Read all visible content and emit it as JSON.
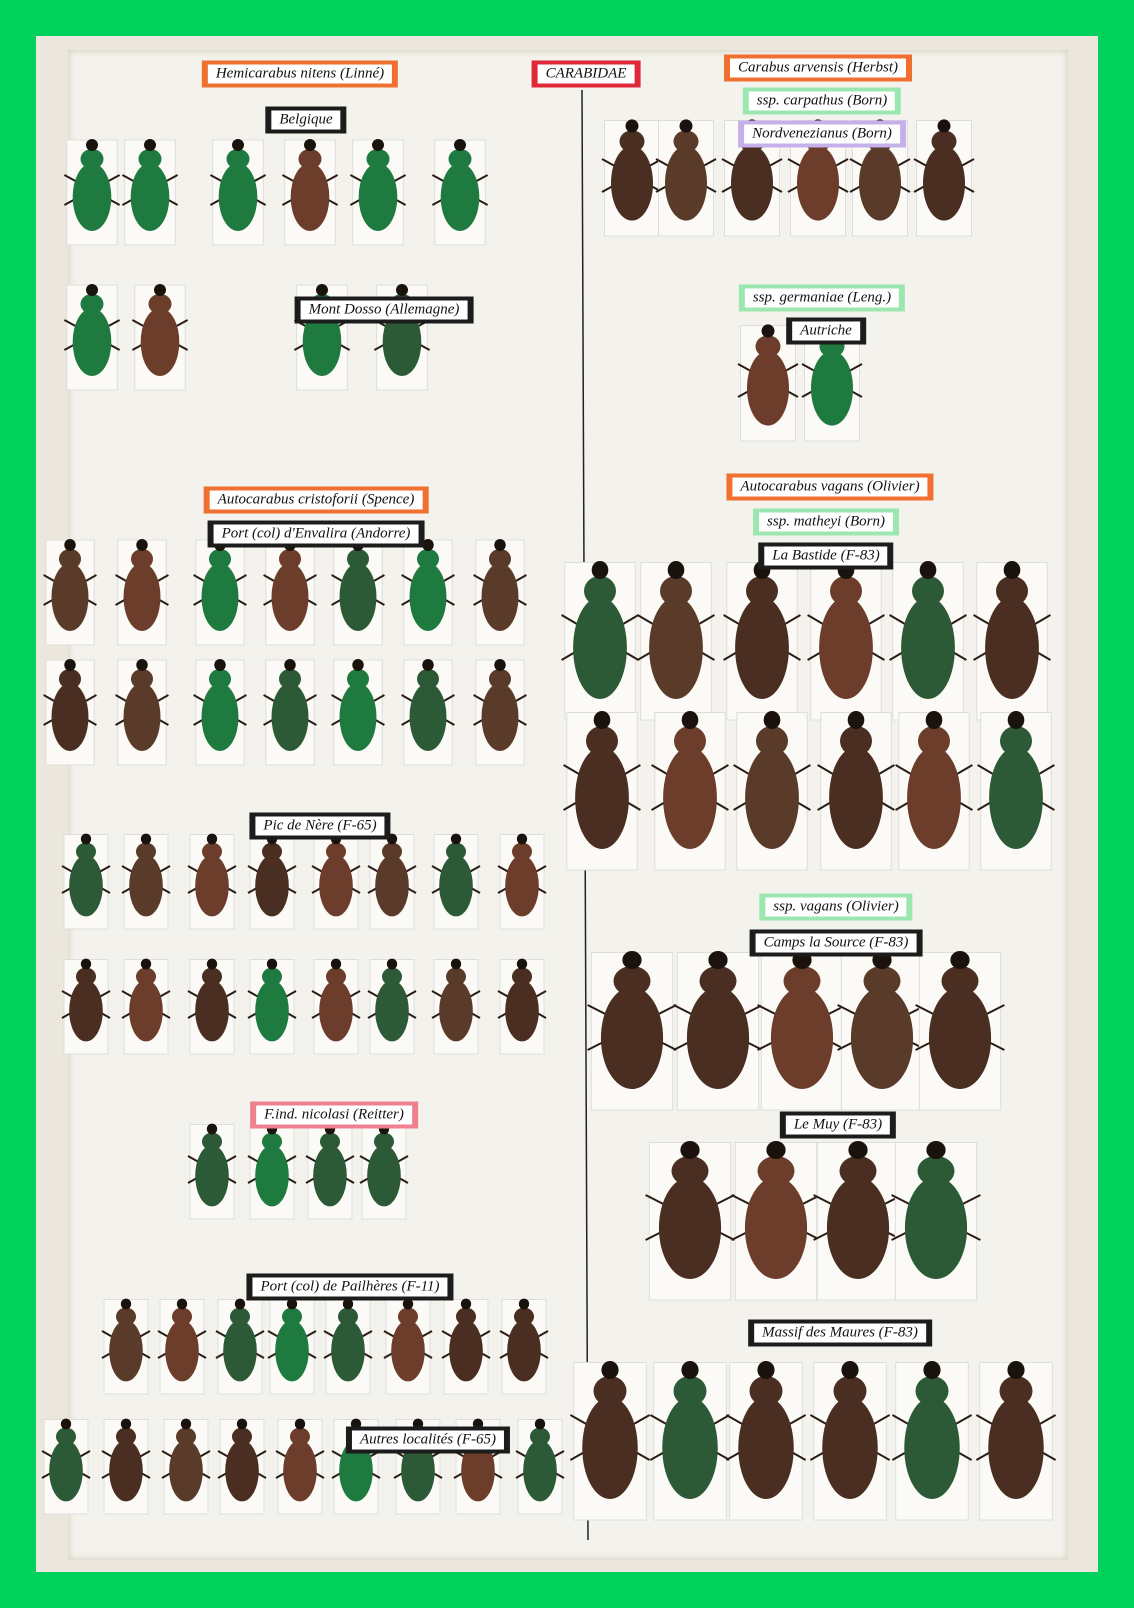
{
  "labels": [
    {
      "text": "Hemicarabus nitens (Linné)"
    },
    {
      "text": "CARABIDAE"
    },
    {
      "text": "Carabus arvensis (Herbst)"
    },
    {
      "text": "ssp. carpathus (Born)"
    },
    {
      "text": "Nordvenezianus (Born)"
    },
    {
      "text": "Belgique"
    },
    {
      "text": "Mont Dosso (Allemagne)"
    },
    {
      "text": "ssp. germaniae (Leng.)"
    },
    {
      "text": "Autriche"
    },
    {
      "text": "Autocarabus cristoforii (Spence)"
    },
    {
      "text": "Port (col) d'Envalira (Andorre)"
    },
    {
      "text": "Autocarabus vagans (Olivier)"
    },
    {
      "text": "ssp. matheyi (Born)"
    },
    {
      "text": "La Bastide (F-83)"
    },
    {
      "text": "Pic de Nère (F-65)"
    },
    {
      "text": "ssp. vagans (Olivier)"
    },
    {
      "text": "Camps la Source (F-83)"
    },
    {
      "text": "F.ind. nicolasi (Reitter)"
    },
    {
      "text": "Le Muy (F-83)"
    },
    {
      "text": "Port (col) de Pailhères (F-11)"
    },
    {
      "text": "Massif des Maures (F-83)"
    },
    {
      "text": "Autres localités (F-65)"
    }
  ]
}
